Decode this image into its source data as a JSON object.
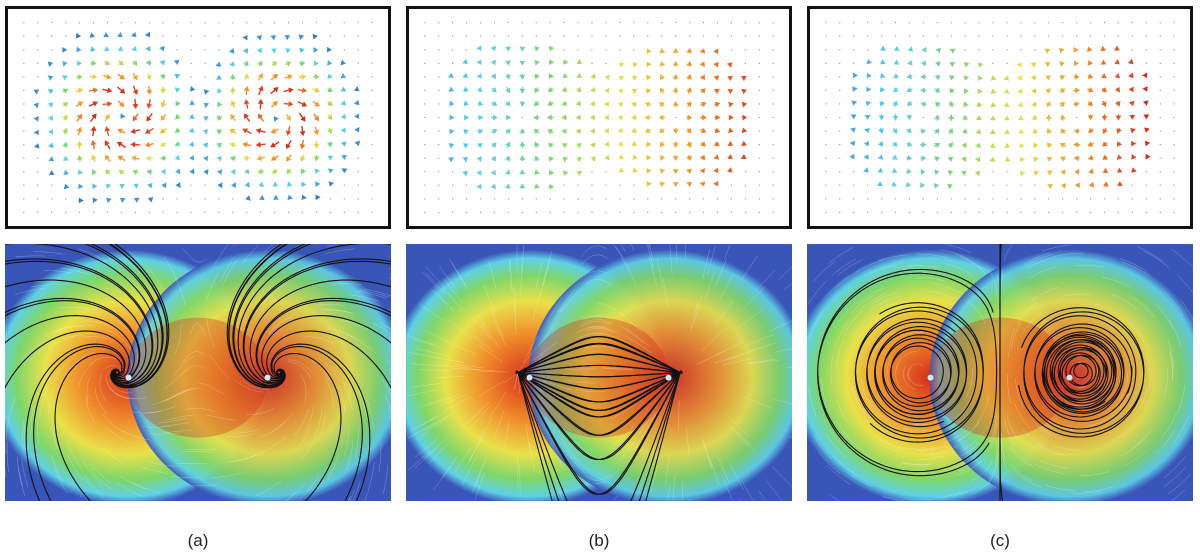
{
  "figure": {
    "columns": [
      {
        "id": "a",
        "label": "(a)",
        "field_type": "spiral",
        "description_icon": "spiral-sink-field"
      },
      {
        "id": "b",
        "label": "(b)",
        "field_type": "source-sink",
        "description_icon": "source-sink-field"
      },
      {
        "id": "c",
        "label": "(c)",
        "field_type": "vortex-pair",
        "description_icon": "vortex-pair-field"
      }
    ],
    "colormap": [
      "#2c3f9e",
      "#3d8fd6",
      "#5fd0e6",
      "#7ed66b",
      "#e9e14a",
      "#f0902c",
      "#d52d1c",
      "#8f1108"
    ],
    "background_blue": "#3a55b8",
    "frame_color": "#111111"
  }
}
